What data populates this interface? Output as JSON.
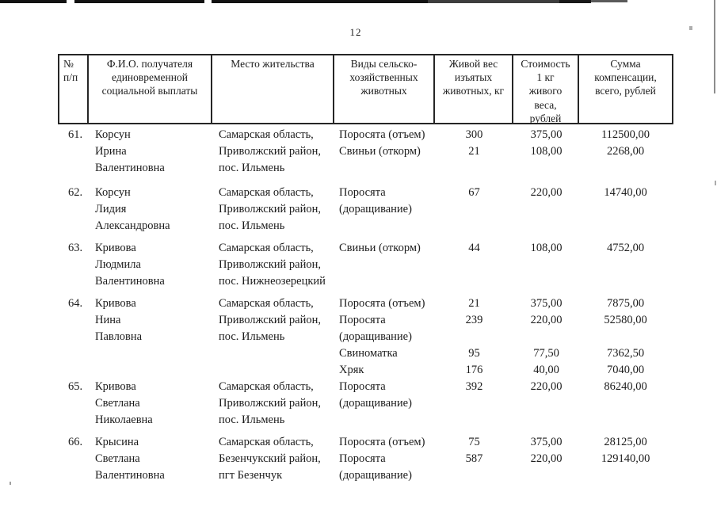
{
  "colors": {
    "paper": "#ffffff",
    "ink": "#1c1c1c",
    "table_border": "#262626"
  },
  "page": {
    "number": "12"
  },
  "table": {
    "headers": [
      {
        "id": "num",
        "label": "№\nп/п"
      },
      {
        "id": "name",
        "label": "Ф.И.О. получателя\nединовременной\nсоциальной выплаты"
      },
      {
        "id": "residence",
        "label": "Место жительства"
      },
      {
        "id": "animals",
        "label": "Виды сельско-\nхозяйственных\nживотных"
      },
      {
        "id": "weight",
        "label": "Живой вес\nизъятых\nживотных, кг"
      },
      {
        "id": "price",
        "label": "Стоимость\n1 кг\nживого\nвеса,\nрублей"
      },
      {
        "id": "sum",
        "label": "Сумма\nкомпенсации,\nвсего, рублей"
      }
    ],
    "rows": [
      {
        "num": "61.",
        "name": "Корсун\nИрина\nВалентиновна",
        "residence": "Самарская область,\nПриволжский район,\nпос. Ильмень",
        "animals": "Поросята (отъем)\nСвиньи (откорм)",
        "weight": "300\n21",
        "price": "375,00\n108,00",
        "sum": "112500,00\n2268,00"
      },
      {
        "num": "62.",
        "name": "Корсун\nЛидия\nАлександровна",
        "residence": "Самарская область,\nПриволжский район,\nпос. Ильмень",
        "animals": "Поросята\n(доращивание)",
        "weight": "67",
        "price": "220,00",
        "sum": "14740,00"
      },
      {
        "num": "63.",
        "name": "Кривова\nЛюдмила\nВалентиновна",
        "residence": "Самарская область,\nПриволжский район,\nпос. Нижнеозерецкий",
        "animals": "Свиньи (откорм)",
        "weight": "44",
        "price": "108,00",
        "sum": "4752,00"
      },
      {
        "num": "64.",
        "name": "Кривова\nНина\nПавловна",
        "residence": "Самарская область,\nПриволжский район,\nпос. Ильмень",
        "animals": "Поросята (отъем)\nПоросята\n(доращивание)\nСвиноматка\nХряк",
        "weight": "21\n239\n\n95\n176",
        "price": "375,00\n220,00\n\n77,50\n40,00",
        "sum": "7875,00\n52580,00\n\n7362,50\n7040,00"
      },
      {
        "num": "65.",
        "name": "Кривова\nСветлана\nНиколаевна",
        "residence": "Самарская область,\nПриволжский район,\nпос. Ильмень",
        "animals": "Поросята\n(доращивание)",
        "weight": "392",
        "price": "220,00",
        "sum": "86240,00"
      },
      {
        "num": "66.",
        "name": "Крысина\nСветлана\nВалентиновна",
        "residence": "Самарская область,\nБезенчукский район,\nпгт Безенчук",
        "animals": "Поросята (отъем)\nПоросята\n(доращивание)",
        "weight": "75\n587",
        "price": "375,00\n220,00",
        "sum": "28125,00\n129140,00"
      }
    ]
  }
}
